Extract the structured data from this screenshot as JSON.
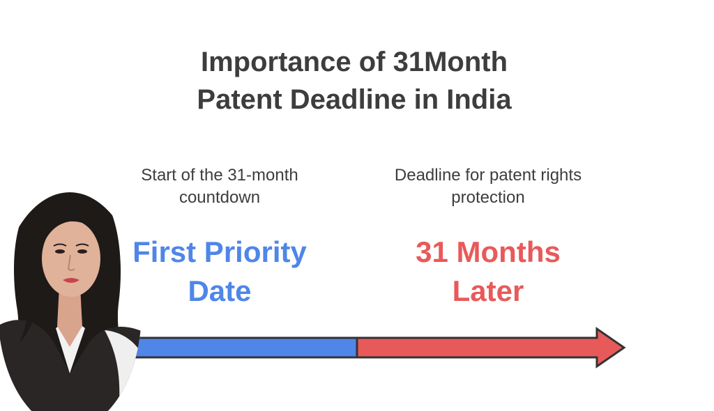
{
  "title": {
    "line1": "Importance of 31Month",
    "line2": "Patent Deadline in India"
  },
  "start": {
    "description_line1": "Start of the 31-month",
    "description_line2": "countdown",
    "label_line1": "First Priority",
    "label_line2": "Date",
    "color": "#4f86e8"
  },
  "end": {
    "description_line1": "Deadline for patent rights",
    "description_line2": "protection",
    "label_line1": "31 Months",
    "label_line2": "Later",
    "color": "#e85a5a"
  }
}
